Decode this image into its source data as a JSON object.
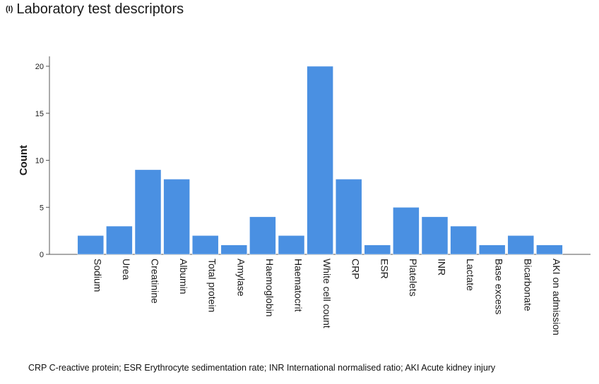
{
  "panel_label": "(I)",
  "title": "Laboratory test descriptors",
  "footnote": "CRP C-reactive protein; ESR Erythrocyte sedimentation rate; INR International normalised ratio; AKI Acute kidney injury",
  "colors": {
    "bar": "#4a90e2",
    "axis": "#555555",
    "text": "#1a1a1a"
  },
  "chart_data": {
    "type": "bar",
    "title": "Laboratory test descriptors",
    "xlabel": "",
    "ylabel": "Count",
    "ylim": [
      0,
      20
    ],
    "yticks": [
      0,
      5,
      10,
      15,
      20
    ],
    "grid": false,
    "categories": [
      "Sodium",
      "Urea",
      "Creatinine",
      "Albumin",
      "Total protein",
      "Amylase",
      "Haemoglobin",
      "Haematocrit",
      "White cell count",
      "CRP",
      "ESR",
      "Platelets",
      "INR",
      "Lactate",
      "Base excess",
      "Bicarbonate",
      "AKI on admission"
    ],
    "values": [
      2,
      3,
      9,
      8,
      2,
      1,
      4,
      2,
      20,
      8,
      1,
      5,
      4,
      3,
      1,
      2,
      1
    ]
  }
}
